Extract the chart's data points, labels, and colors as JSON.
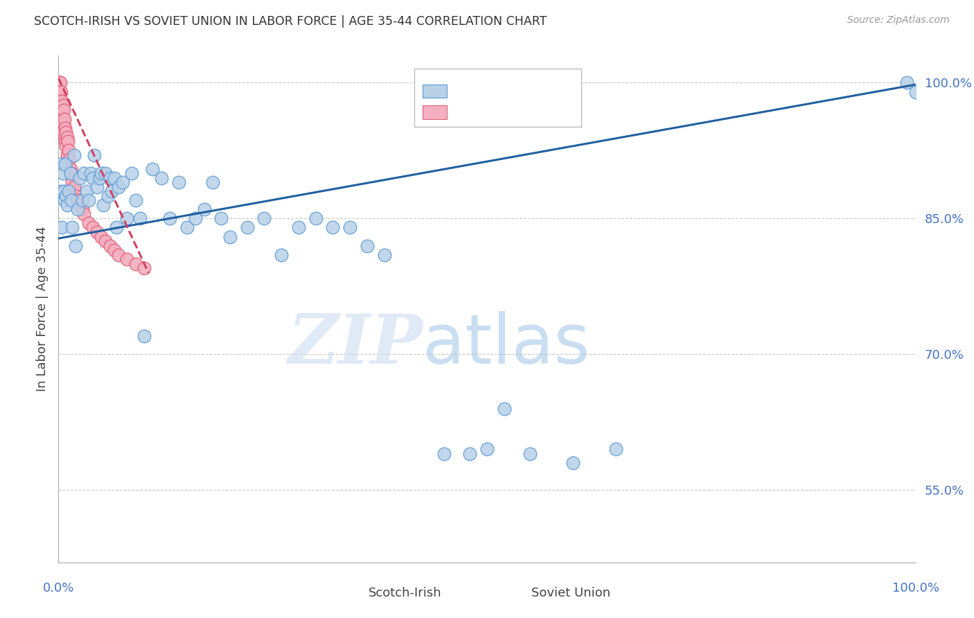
{
  "title": "SCOTCH-IRISH VS SOVIET UNION IN LABOR FORCE | AGE 35-44 CORRELATION CHART",
  "source": "Source: ZipAtlas.com",
  "ylabel": "In Labor Force | Age 35-44",
  "watermark_zip": "ZIP",
  "watermark_atlas": "atlas",
  "scotch_irish_x": [
    0.002,
    0.003,
    0.004,
    0.005,
    0.006,
    0.007,
    0.008,
    0.009,
    0.01,
    0.012,
    0.014,
    0.015,
    0.016,
    0.018,
    0.02,
    0.022,
    0.025,
    0.028,
    0.03,
    0.033,
    0.035,
    0.038,
    0.04,
    0.042,
    0.045,
    0.048,
    0.05,
    0.052,
    0.055,
    0.058,
    0.06,
    0.062,
    0.065,
    0.068,
    0.07,
    0.075,
    0.08,
    0.085,
    0.09,
    0.095,
    0.1,
    0.11,
    0.12,
    0.13,
    0.14,
    0.15,
    0.16,
    0.17,
    0.18,
    0.19,
    0.2,
    0.22,
    0.24,
    0.26,
    0.28,
    0.3,
    0.32,
    0.34,
    0.36,
    0.38,
    0.45,
    0.48,
    0.5,
    0.52,
    0.55,
    0.6,
    0.65,
    0.99,
    1.0
  ],
  "scotch_irish_y": [
    0.91,
    0.88,
    0.84,
    0.9,
    0.88,
    0.87,
    0.91,
    0.875,
    0.865,
    0.88,
    0.9,
    0.87,
    0.84,
    0.92,
    0.82,
    0.86,
    0.895,
    0.87,
    0.9,
    0.88,
    0.87,
    0.9,
    0.895,
    0.92,
    0.885,
    0.895,
    0.9,
    0.865,
    0.9,
    0.875,
    0.895,
    0.88,
    0.895,
    0.84,
    0.885,
    0.89,
    0.85,
    0.9,
    0.87,
    0.85,
    0.72,
    0.905,
    0.895,
    0.85,
    0.89,
    0.84,
    0.85,
    0.86,
    0.89,
    0.85,
    0.83,
    0.84,
    0.85,
    0.81,
    0.84,
    0.85,
    0.84,
    0.84,
    0.82,
    0.81,
    0.59,
    0.59,
    0.595,
    0.64,
    0.59,
    0.58,
    0.595,
    1.0,
    0.99
  ],
  "soviet_x": [
    0.001,
    0.001,
    0.001,
    0.001,
    0.002,
    0.002,
    0.002,
    0.002,
    0.003,
    0.003,
    0.003,
    0.004,
    0.004,
    0.004,
    0.005,
    0.005,
    0.005,
    0.006,
    0.006,
    0.007,
    0.007,
    0.008,
    0.008,
    0.009,
    0.009,
    0.01,
    0.01,
    0.011,
    0.012,
    0.013,
    0.014,
    0.015,
    0.016,
    0.018,
    0.02,
    0.022,
    0.025,
    0.028,
    0.03,
    0.035,
    0.04,
    0.045,
    0.05,
    0.055,
    0.06,
    0.065,
    0.07,
    0.08,
    0.09,
    0.1
  ],
  "soviet_y": [
    1.0,
    1.0,
    0.99,
    0.98,
    1.0,
    0.99,
    0.98,
    0.97,
    0.99,
    0.98,
    0.96,
    0.98,
    0.97,
    0.95,
    0.975,
    0.96,
    0.945,
    0.97,
    0.955,
    0.96,
    0.94,
    0.95,
    0.935,
    0.945,
    0.93,
    0.94,
    0.92,
    0.935,
    0.925,
    0.915,
    0.905,
    0.9,
    0.89,
    0.885,
    0.875,
    0.87,
    0.865,
    0.86,
    0.855,
    0.845,
    0.84,
    0.835,
    0.83,
    0.825,
    0.82,
    0.815,
    0.81,
    0.805,
    0.8,
    0.795
  ],
  "blue_fill": "#b8d0e8",
  "blue_edge": "#5b9bd5",
  "pink_fill": "#f4afc0",
  "pink_edge": "#e0607a",
  "trend_blue": "#2060a0",
  "trend_pink": "#d04060",
  "axis_label_color": "#4472c4",
  "grid_color": "#c8c8c8",
  "title_color": "#333333",
  "source_color": "#999999",
  "wm_zip_color": "#ccddf0",
  "wm_atlas_color": "#a8c8e8",
  "xmin": 0.0,
  "xmax": 1.0,
  "ymin": 0.47,
  "ymax": 1.03,
  "ytick_vals": [
    0.55,
    0.7,
    0.85,
    1.0
  ],
  "ytick_labels": [
    "55.0%",
    "70.0%",
    "85.0%",
    "100.0%"
  ]
}
